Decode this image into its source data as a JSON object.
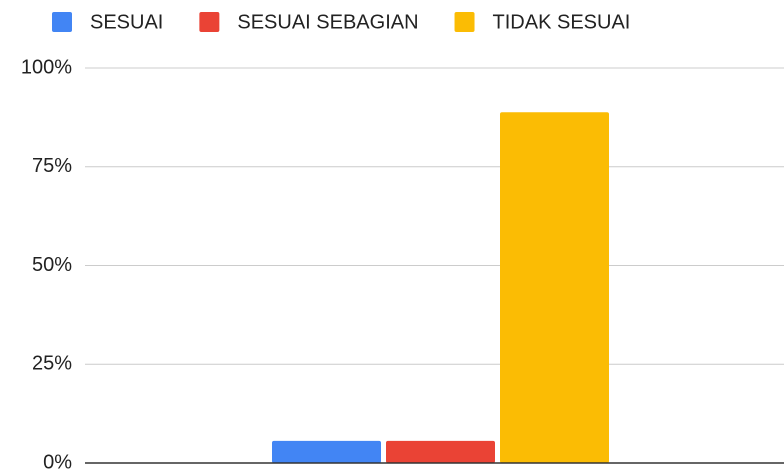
{
  "chart_data": {
    "type": "bar",
    "categories": [
      null
    ],
    "series": [
      {
        "name": "SESUAI",
        "color": "#4285f4",
        "values": [
          5.6
        ]
      },
      {
        "name": "SESUAI SEBAGIAN",
        "color": "#ea4335",
        "values": [
          5.6
        ]
      },
      {
        "name": "TIDAK SESUAI",
        "color": "#fbbc04",
        "values": [
          88.8
        ]
      }
    ],
    "ylim": [
      0,
      100
    ],
    "yticks": [
      {
        "value": 0,
        "label": "0%"
      },
      {
        "value": 25,
        "label": "25%"
      },
      {
        "value": 50,
        "label": "50%"
      },
      {
        "value": 75,
        "label": "75%"
      },
      {
        "value": 100,
        "label": "100%"
      }
    ],
    "grid": true,
    "legend": "top"
  }
}
